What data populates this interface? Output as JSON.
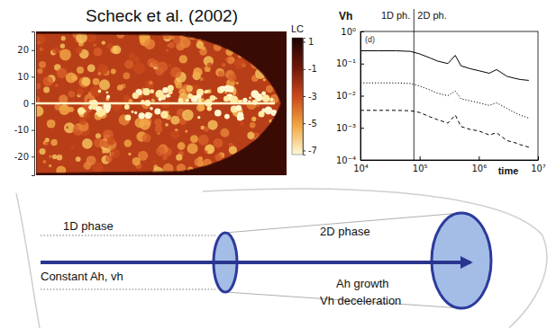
{
  "title": "Scheck et al. (2002)",
  "simulation_image": {
    "ylim": [
      -27,
      27
    ],
    "yticks": [
      20,
      10,
      0,
      -10,
      -20
    ],
    "colorbar": {
      "label": "LC",
      "range": [
        -7.3,
        1.3
      ],
      "ticks": [
        1,
        -1,
        -3,
        -5,
        -7
      ]
    }
  },
  "chart_data": {
    "type": "line",
    "log": true,
    "y_label": "Vh",
    "x_label": "time",
    "panel_label": "(d)",
    "phases": [
      {
        "label": "1D ph."
      },
      {
        "label": "2D ph."
      }
    ],
    "phase_boundary_x": 80000,
    "x": [
      10000,
      20000,
      40000,
      70000,
      100000,
      150000,
      200000,
      300000,
      400000,
      500000,
      700000,
      1000000,
      1500000,
      2000000,
      3000000,
      4000000,
      5000000,
      7000000
    ],
    "series": [
      {
        "color": "#000000",
        "line_style": "solid",
        "values": [
          0.25,
          0.25,
          0.25,
          0.24,
          0.2,
          0.15,
          0.12,
          0.1,
          0.18,
          0.085,
          0.07,
          0.06,
          0.05,
          0.065,
          0.04,
          0.035,
          0.032,
          0.03
        ]
      },
      {
        "color": "#000000",
        "line_style": "dotted",
        "values": [
          0.025,
          0.025,
          0.025,
          0.024,
          0.02,
          0.015,
          0.012,
          0.01,
          0.014,
          0.008,
          0.007,
          0.006,
          0.005,
          0.006,
          0.004,
          0.003,
          0.0025,
          0.002
        ]
      },
      {
        "color": "#000000",
        "line_style": "dashed",
        "values": [
          0.0035,
          0.0035,
          0.0035,
          0.0034,
          0.003,
          0.0022,
          0.0018,
          0.0014,
          0.0025,
          0.0011,
          0.0009,
          0.0008,
          0.0006,
          0.0007,
          0.0004,
          0.00035,
          0.0003,
          0.00025
        ]
      }
    ],
    "xlim": [
      10000,
      10000000
    ],
    "xticks": [
      {
        "value": 10000,
        "label": "10⁴"
      },
      {
        "value": 100000,
        "label": "10⁵"
      },
      {
        "value": 1000000,
        "label": "10⁶"
      },
      {
        "value": 10000000,
        "label": "10⁷"
      }
    ],
    "ylim": [
      0.0001,
      1
    ],
    "yticks": [
      {
        "value": 1,
        "label": "10⁰"
      },
      {
        "value": 0.1,
        "label": "10⁻¹"
      },
      {
        "value": 0.01,
        "label": "10⁻²"
      },
      {
        "value": 0.001,
        "label": "10⁻³"
      },
      {
        "value": 0.0001,
        "label": "10⁻⁴"
      }
    ]
  },
  "diagram": {
    "left": {
      "title": "1D phase",
      "text": "Constant Ah, vh"
    },
    "right": {
      "title": "2D phase",
      "lines": [
        "Ah growth",
        "Vh deceleration"
      ]
    }
  }
}
